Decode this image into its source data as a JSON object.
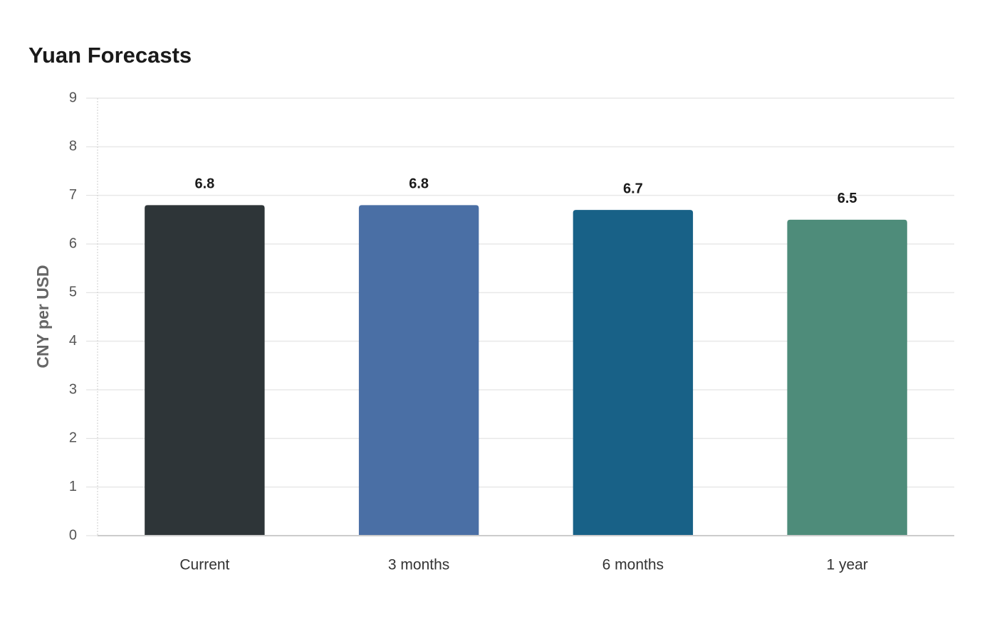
{
  "chart_data": {
    "type": "bar",
    "title": "Yuan Forecasts",
    "y_label": "CNY per USD",
    "categories": [
      "Current",
      "3 months",
      "6 months",
      "1 year"
    ],
    "values": [
      6.8,
      6.8,
      6.7,
      6.5
    ],
    "colors": [
      "#2e3538",
      "#4a6fa5",
      "#186187",
      "#4e8c7a"
    ],
    "ylim": [
      0,
      9
    ],
    "yticks": [
      0,
      1,
      2,
      3,
      4,
      5,
      6,
      7,
      8,
      9
    ],
    "grid": true
  }
}
